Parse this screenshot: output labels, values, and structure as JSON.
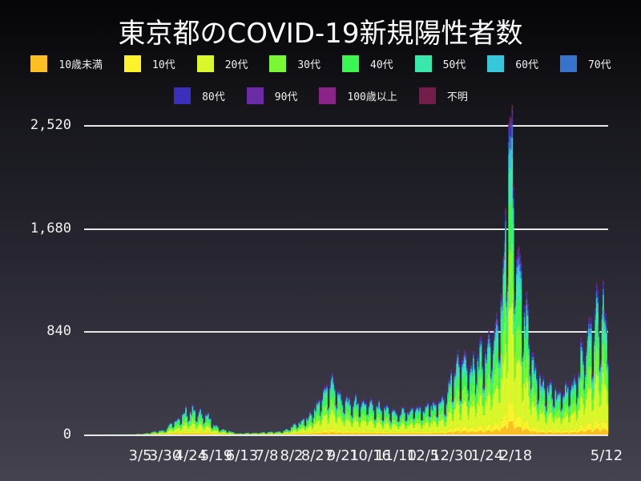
{
  "title": "東京都のCOVID-19新規陽性者数",
  "legend": [
    {
      "label": "10歳未満",
      "color": "#fbbf24"
    },
    {
      "label": "10代",
      "color": "#fef22d"
    },
    {
      "label": "20代",
      "color": "#d9f72a"
    },
    {
      "label": "30代",
      "color": "#79f734"
    },
    {
      "label": "40代",
      "color": "#3af651"
    },
    {
      "label": "50代",
      "color": "#39e9ab"
    },
    {
      "label": "60代",
      "color": "#36c8da"
    },
    {
      "label": "70代",
      "color": "#3573cc"
    },
    {
      "label": "80代",
      "color": "#3a2fbd"
    },
    {
      "label": "90代",
      "color": "#6b2ba6"
    },
    {
      "label": "100歳以上",
      "color": "#8a2488"
    },
    {
      "label": "不明",
      "color": "#731e4a"
    }
  ],
  "yaxis": {
    "ticks": [
      "2,520",
      "1,680",
      "840",
      "0"
    ],
    "values": [
      2520,
      1680,
      840,
      0
    ]
  },
  "xaxis": {
    "ticks": [
      "3/5",
      "3/30",
      "4/24",
      "5/19",
      "6/13",
      "7/8",
      "8/2",
      "8/27",
      "9/21",
      "10/16",
      "11/10",
      "12/5",
      "12/30",
      "1/24",
      "2/18",
      "5/12"
    ]
  },
  "chart_data": {
    "type": "bar",
    "stacked": true,
    "title": "東京都のCOVID-19新規陽性者数",
    "xlabel": "",
    "ylabel": "",
    "ylim": [
      0,
      2520
    ],
    "grid": true,
    "legend_position": "top",
    "x_tick_labels": [
      "3/5",
      "3/30",
      "4/24",
      "5/19",
      "6/13",
      "7/8",
      "8/2",
      "8/27",
      "9/21",
      "10/16",
      "11/10",
      "12/5",
      "12/30",
      "1/24",
      "2/18",
      "5/12"
    ],
    "series_names": [
      "10歳未満",
      "10代",
      "20代",
      "30代",
      "40代",
      "50代",
      "60代",
      "70代",
      "80代",
      "90代",
      "100歳以上",
      "不明"
    ],
    "daily_total_keyframes": [
      {
        "date": "1/24(2020)",
        "value": 1
      },
      {
        "date": "2/15",
        "value": 2
      },
      {
        "date": "3/5",
        "value": 5
      },
      {
        "date": "3/25",
        "value": 40
      },
      {
        "date": "4/10",
        "value": 190
      },
      {
        "date": "4/17",
        "value": 200
      },
      {
        "date": "4/24",
        "value": 160
      },
      {
        "date": "5/5",
        "value": 60
      },
      {
        "date": "5/19",
        "value": 10
      },
      {
        "date": "6/13",
        "value": 25
      },
      {
        "date": "7/8",
        "value": 140
      },
      {
        "date": "7/31",
        "value": 460
      },
      {
        "date": "8/2",
        "value": 300
      },
      {
        "date": "8/27",
        "value": 250
      },
      {
        "date": "9/21",
        "value": 180
      },
      {
        "date": "10/16",
        "value": 220
      },
      {
        "date": "11/10",
        "value": 300
      },
      {
        "date": "11/20",
        "value": 530
      },
      {
        "date": "12/5",
        "value": 580
      },
      {
        "date": "12/17",
        "value": 820
      },
      {
        "date": "12/31",
        "value": 1340
      },
      {
        "date": "1/7",
        "value": 2520
      },
      {
        "date": "1/14",
        "value": 1500
      },
      {
        "date": "1/24",
        "value": 1000
      },
      {
        "date": "2/5",
        "value": 550
      },
      {
        "date": "2/18",
        "value": 400
      },
      {
        "date": "3/10",
        "value": 320
      },
      {
        "date": "4/1",
        "value": 450
      },
      {
        "date": "4/20",
        "value": 780
      },
      {
        "date": "5/8",
        "value": 1120
      },
      {
        "date": "5/12",
        "value": 970
      }
    ],
    "age_share": [
      0.04,
      0.06,
      0.3,
      0.18,
      0.15,
      0.11,
      0.06,
      0.04,
      0.03,
      0.015,
      0.002,
      0.013
    ]
  }
}
